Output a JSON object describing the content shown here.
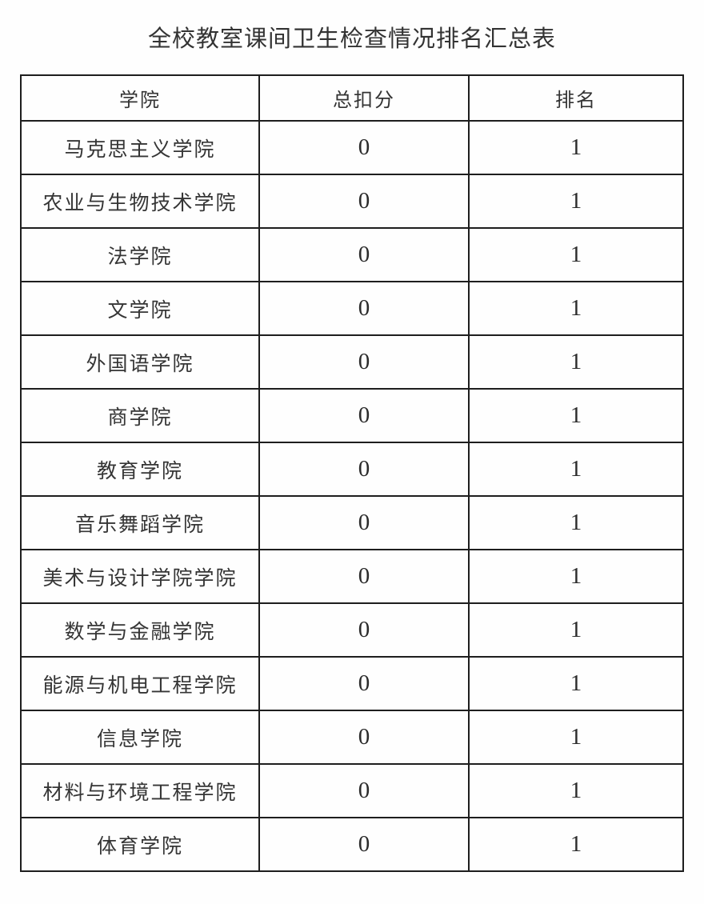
{
  "doc": {
    "title": "全校教室课间卫生检查情况排名汇总表"
  },
  "table": {
    "headers": {
      "college": "学院",
      "deduction": "总扣分",
      "rank": "排名"
    },
    "rows": [
      {
        "college": "马克思主义学院",
        "deduction": "0",
        "rank": "1"
      },
      {
        "college": "农业与生物技术学院",
        "deduction": "0",
        "rank": "1"
      },
      {
        "college": "法学院",
        "deduction": "0",
        "rank": "1"
      },
      {
        "college": "文学院",
        "deduction": "0",
        "rank": "1"
      },
      {
        "college": "外国语学院",
        "deduction": "0",
        "rank": "1"
      },
      {
        "college": "商学院",
        "deduction": "0",
        "rank": "1"
      },
      {
        "college": "教育学院",
        "deduction": "0",
        "rank": "1"
      },
      {
        "college": "音乐舞蹈学院",
        "deduction": "0",
        "rank": "1"
      },
      {
        "college": "美术与设计学院学院",
        "deduction": "0",
        "rank": "1"
      },
      {
        "college": "数学与金融学院",
        "deduction": "0",
        "rank": "1"
      },
      {
        "college": "能源与机电工程学院",
        "deduction": "0",
        "rank": "1"
      },
      {
        "college": "信息学院",
        "deduction": "0",
        "rank": "1"
      },
      {
        "college": "材料与环境工程学院",
        "deduction": "0",
        "rank": "1"
      },
      {
        "college": "体育学院",
        "deduction": "0",
        "rank": "1"
      }
    ]
  }
}
